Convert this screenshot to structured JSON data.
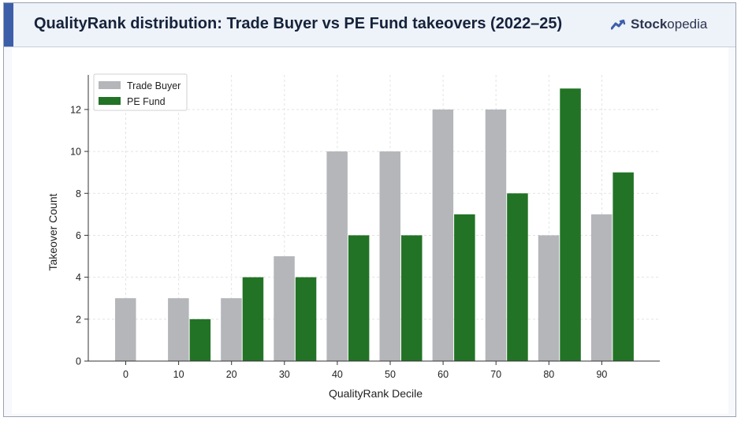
{
  "header": {
    "title": "QualityRank distribution: Trade Buyer vs PE Fund takeovers (2022–25)",
    "brand_name_bold": "Stock",
    "brand_name_rest": "opedia",
    "brand_icon": "stockopedia-logo-icon"
  },
  "colors": {
    "trade_buyer": "#b4b6ba",
    "pe_fund": "#227325",
    "accent": "#3d5faa"
  },
  "chart_data": {
    "type": "bar",
    "title": "QualityRank distribution: Trade Buyer vs PE Fund takeovers (2022–25)",
    "xlabel": "QualityRank Decile",
    "ylabel": "Takeover Count",
    "categories": [
      "0",
      "10",
      "20",
      "30",
      "40",
      "50",
      "60",
      "70",
      "80",
      "90"
    ],
    "series": [
      {
        "name": "Trade Buyer",
        "values": [
          3,
          3,
          3,
          5,
          10,
          10,
          12,
          12,
          6,
          7
        ]
      },
      {
        "name": "PE Fund",
        "values": [
          0,
          2,
          4,
          4,
          6,
          6,
          7,
          8,
          13,
          9
        ]
      }
    ],
    "yticks": [
      "0",
      "2",
      "4",
      "6",
      "8",
      "10",
      "12"
    ],
    "ylim": [
      0,
      13.65
    ],
    "grid": true,
    "legend_position": "top-left"
  }
}
